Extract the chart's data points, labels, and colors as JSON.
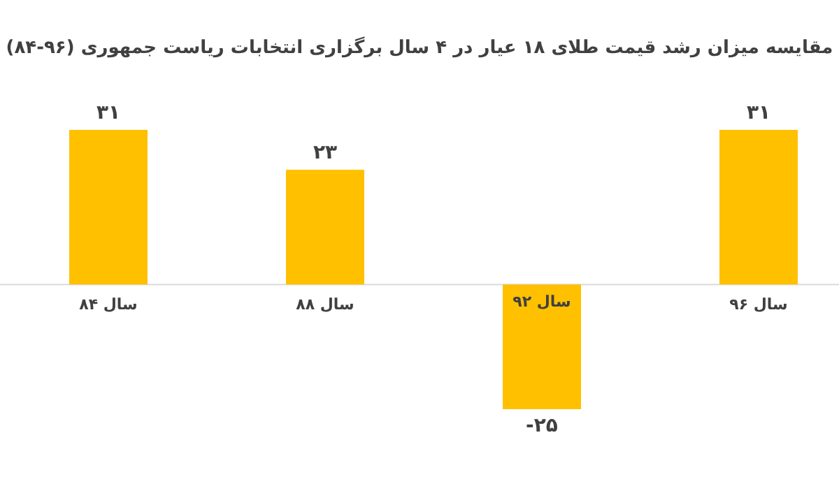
{
  "chart_data": {
    "type": "bar",
    "title": "مقایسه میزان رشد قیمت طلای ۱۸ عیار در ۴ سال برگزاری انتخابات ریاست جمهوری (۹۶-۸۴)",
    "categories": [
      "سال ۸۴",
      "سال ۸۸",
      "سال ۹۲",
      "سال ۹۶"
    ],
    "values": [
      31,
      23,
      -25,
      31
    ],
    "value_labels": [
      "۳۱",
      "۲۳",
      "-۲۵",
      "۳۱"
    ],
    "color": "#ffc000"
  }
}
